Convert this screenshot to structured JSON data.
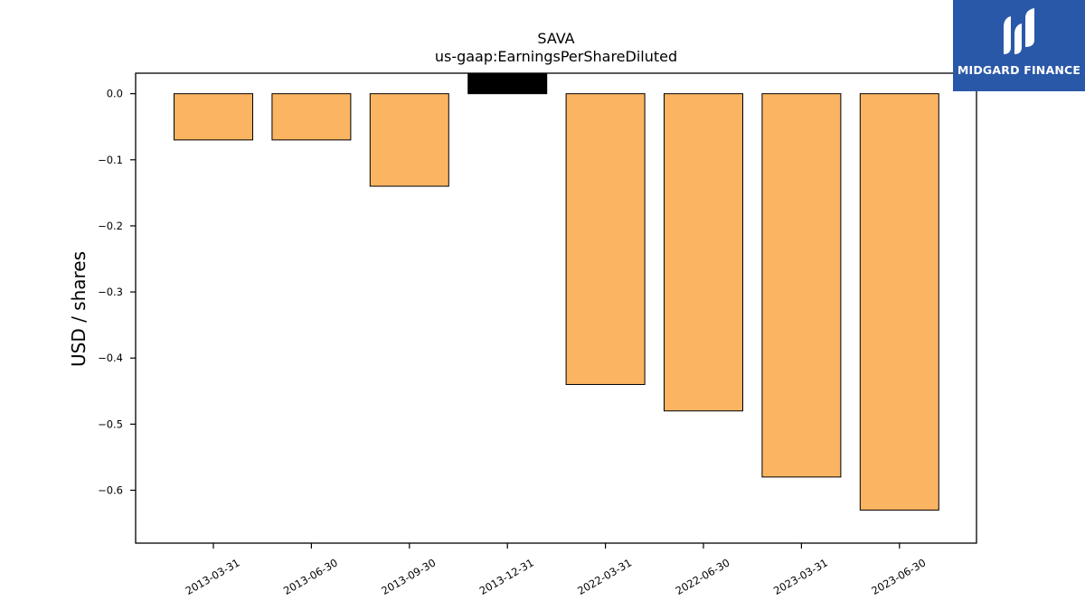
{
  "chart_data": {
    "type": "bar",
    "title": "SAVA",
    "subtitle": "us-gaap:EarningsPerShareDiluted",
    "ylabel": "USD / shares",
    "xlabel": "",
    "categories": [
      "2013-03-31",
      "2013-06-30",
      "2013-09-30",
      "2013-12-31",
      "2022-03-31",
      "2022-06-30",
      "2023-03-31",
      "2023-06-30"
    ],
    "values": [
      -0.07,
      -0.07,
      -0.14,
      0.0,
      -0.44,
      -0.48,
      -0.58,
      -0.63
    ],
    "ylim": [
      -0.68,
      0.031
    ],
    "yticks": [
      "0.0",
      "−0.1",
      "−0.2",
      "−0.3",
      "−0.4",
      "−0.5",
      "−0.6"
    ],
    "ytick_values": [
      0.0,
      -0.1,
      -0.2,
      -0.3,
      -0.4,
      -0.5,
      -0.6
    ],
    "grid": false,
    "bar_color": "#fbb462",
    "highlight_color": "#000000",
    "highlight_index": 3
  },
  "logo": {
    "text": "MIDGARD FINANCE",
    "background": "#2a58a8"
  }
}
